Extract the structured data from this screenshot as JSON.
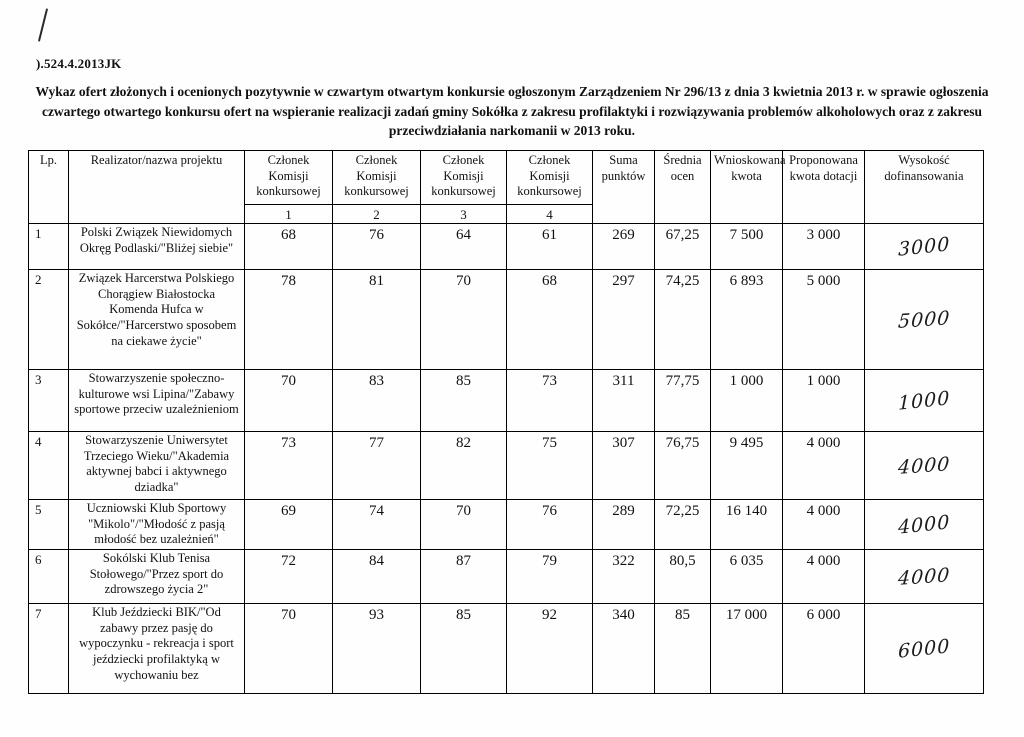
{
  "page": {
    "reference": ").524.4.2013JK",
    "title": "Wykaz ofert złożonych i ocenionych pozytywnie w czwartym otwartym konkursie ogłoszonym Zarządzeniem Nr 296/13 z dnia 3 kwietnia 2013 r. w sprawie ogłoszenia czwartego otwartego konkursu ofert na wspieranie realizacji zadań gminy Sokółka z zakresu profilaktyki i rozwiązywania problemów alkoholowych oraz z zakresu przeciwdziałania narkomanii w 2013 roku."
  },
  "table": {
    "headers": {
      "lp": "Lp.",
      "realizator": "Realizator/nazwa projektu",
      "czlonek": "Członek Komisji konkursowej",
      "member_numbers": [
        "1",
        "2",
        "3",
        "4"
      ],
      "suma": "Suma punktów",
      "srednia": "Średnia ocen",
      "wnioskowana": "Wnioskowana kwota",
      "proponowana": "Proponowana kwota dotacji",
      "wysokosc": "Wysokość dofinansowania"
    },
    "rows": [
      {
        "lp": "1",
        "name": "Polski Związek Niewidomych Okręg Podlaski/\"Bliżej siebie\"",
        "scores": [
          "68",
          "76",
          "64",
          "61"
        ],
        "suma": "269",
        "srednia": "67,25",
        "wnioskowana": "7 500",
        "proponowana": "3 000",
        "handwritten": "3000"
      },
      {
        "lp": "2",
        "name": "Związek Harcerstwa Polskiego Chorągiew Białostocka Komenda Hufca w Sokółce/\"Harcerstwo sposobem na ciekawe życie\"",
        "scores": [
          "78",
          "81",
          "70",
          "68"
        ],
        "suma": "297",
        "srednia": "74,25",
        "wnioskowana": "6 893",
        "proponowana": "5 000",
        "handwritten": "5000"
      },
      {
        "lp": "3",
        "name": "Stowarzyszenie społeczno-kulturowe wsi Lipina/\"Zabawy sportowe przeciw uzależnieniom",
        "scores": [
          "70",
          "83",
          "85",
          "73"
        ],
        "suma": "311",
        "srednia": "77,75",
        "wnioskowana": "1 000",
        "proponowana": "1 000",
        "handwritten": "1000"
      },
      {
        "lp": "4",
        "name": "Stowarzyszenie Uniwersytet Trzeciego Wieku/\"Akademia aktywnej babci i aktywnego dziadka\"",
        "scores": [
          "73",
          "77",
          "82",
          "75"
        ],
        "suma": "307",
        "srednia": "76,75",
        "wnioskowana": "9 495",
        "proponowana": "4 000",
        "handwritten": "4000"
      },
      {
        "lp": "5",
        "name": "Uczniowski Klub Sportowy \"Mikolo\"/\"Młodość z pasją młodość bez uzależnień\"",
        "scores": [
          "69",
          "74",
          "70",
          "76"
        ],
        "suma": "289",
        "srednia": "72,25",
        "wnioskowana": "16 140",
        "proponowana": "4 000",
        "handwritten": "4000"
      },
      {
        "lp": "6",
        "name": "Sokólski Klub Tenisa Stołowego/\"Przez sport do zdrowszego życia 2\"",
        "scores": [
          "72",
          "84",
          "87",
          "79"
        ],
        "suma": "322",
        "srednia": "80,5",
        "wnioskowana": "6 035",
        "proponowana": "4 000",
        "handwritten": "4000"
      },
      {
        "lp": "7",
        "name": "Klub Jeździecki BIK/\"Od zabawy przez pasję do wypoczynku - rekreacja i sport jeździecki profilaktyką w wychowaniu bez",
        "scores": [
          "70",
          "93",
          "85",
          "92"
        ],
        "suma": "340",
        "srednia": "85",
        "wnioskowana": "17 000",
        "proponowana": "6 000",
        "handwritten": "6000"
      }
    ]
  }
}
